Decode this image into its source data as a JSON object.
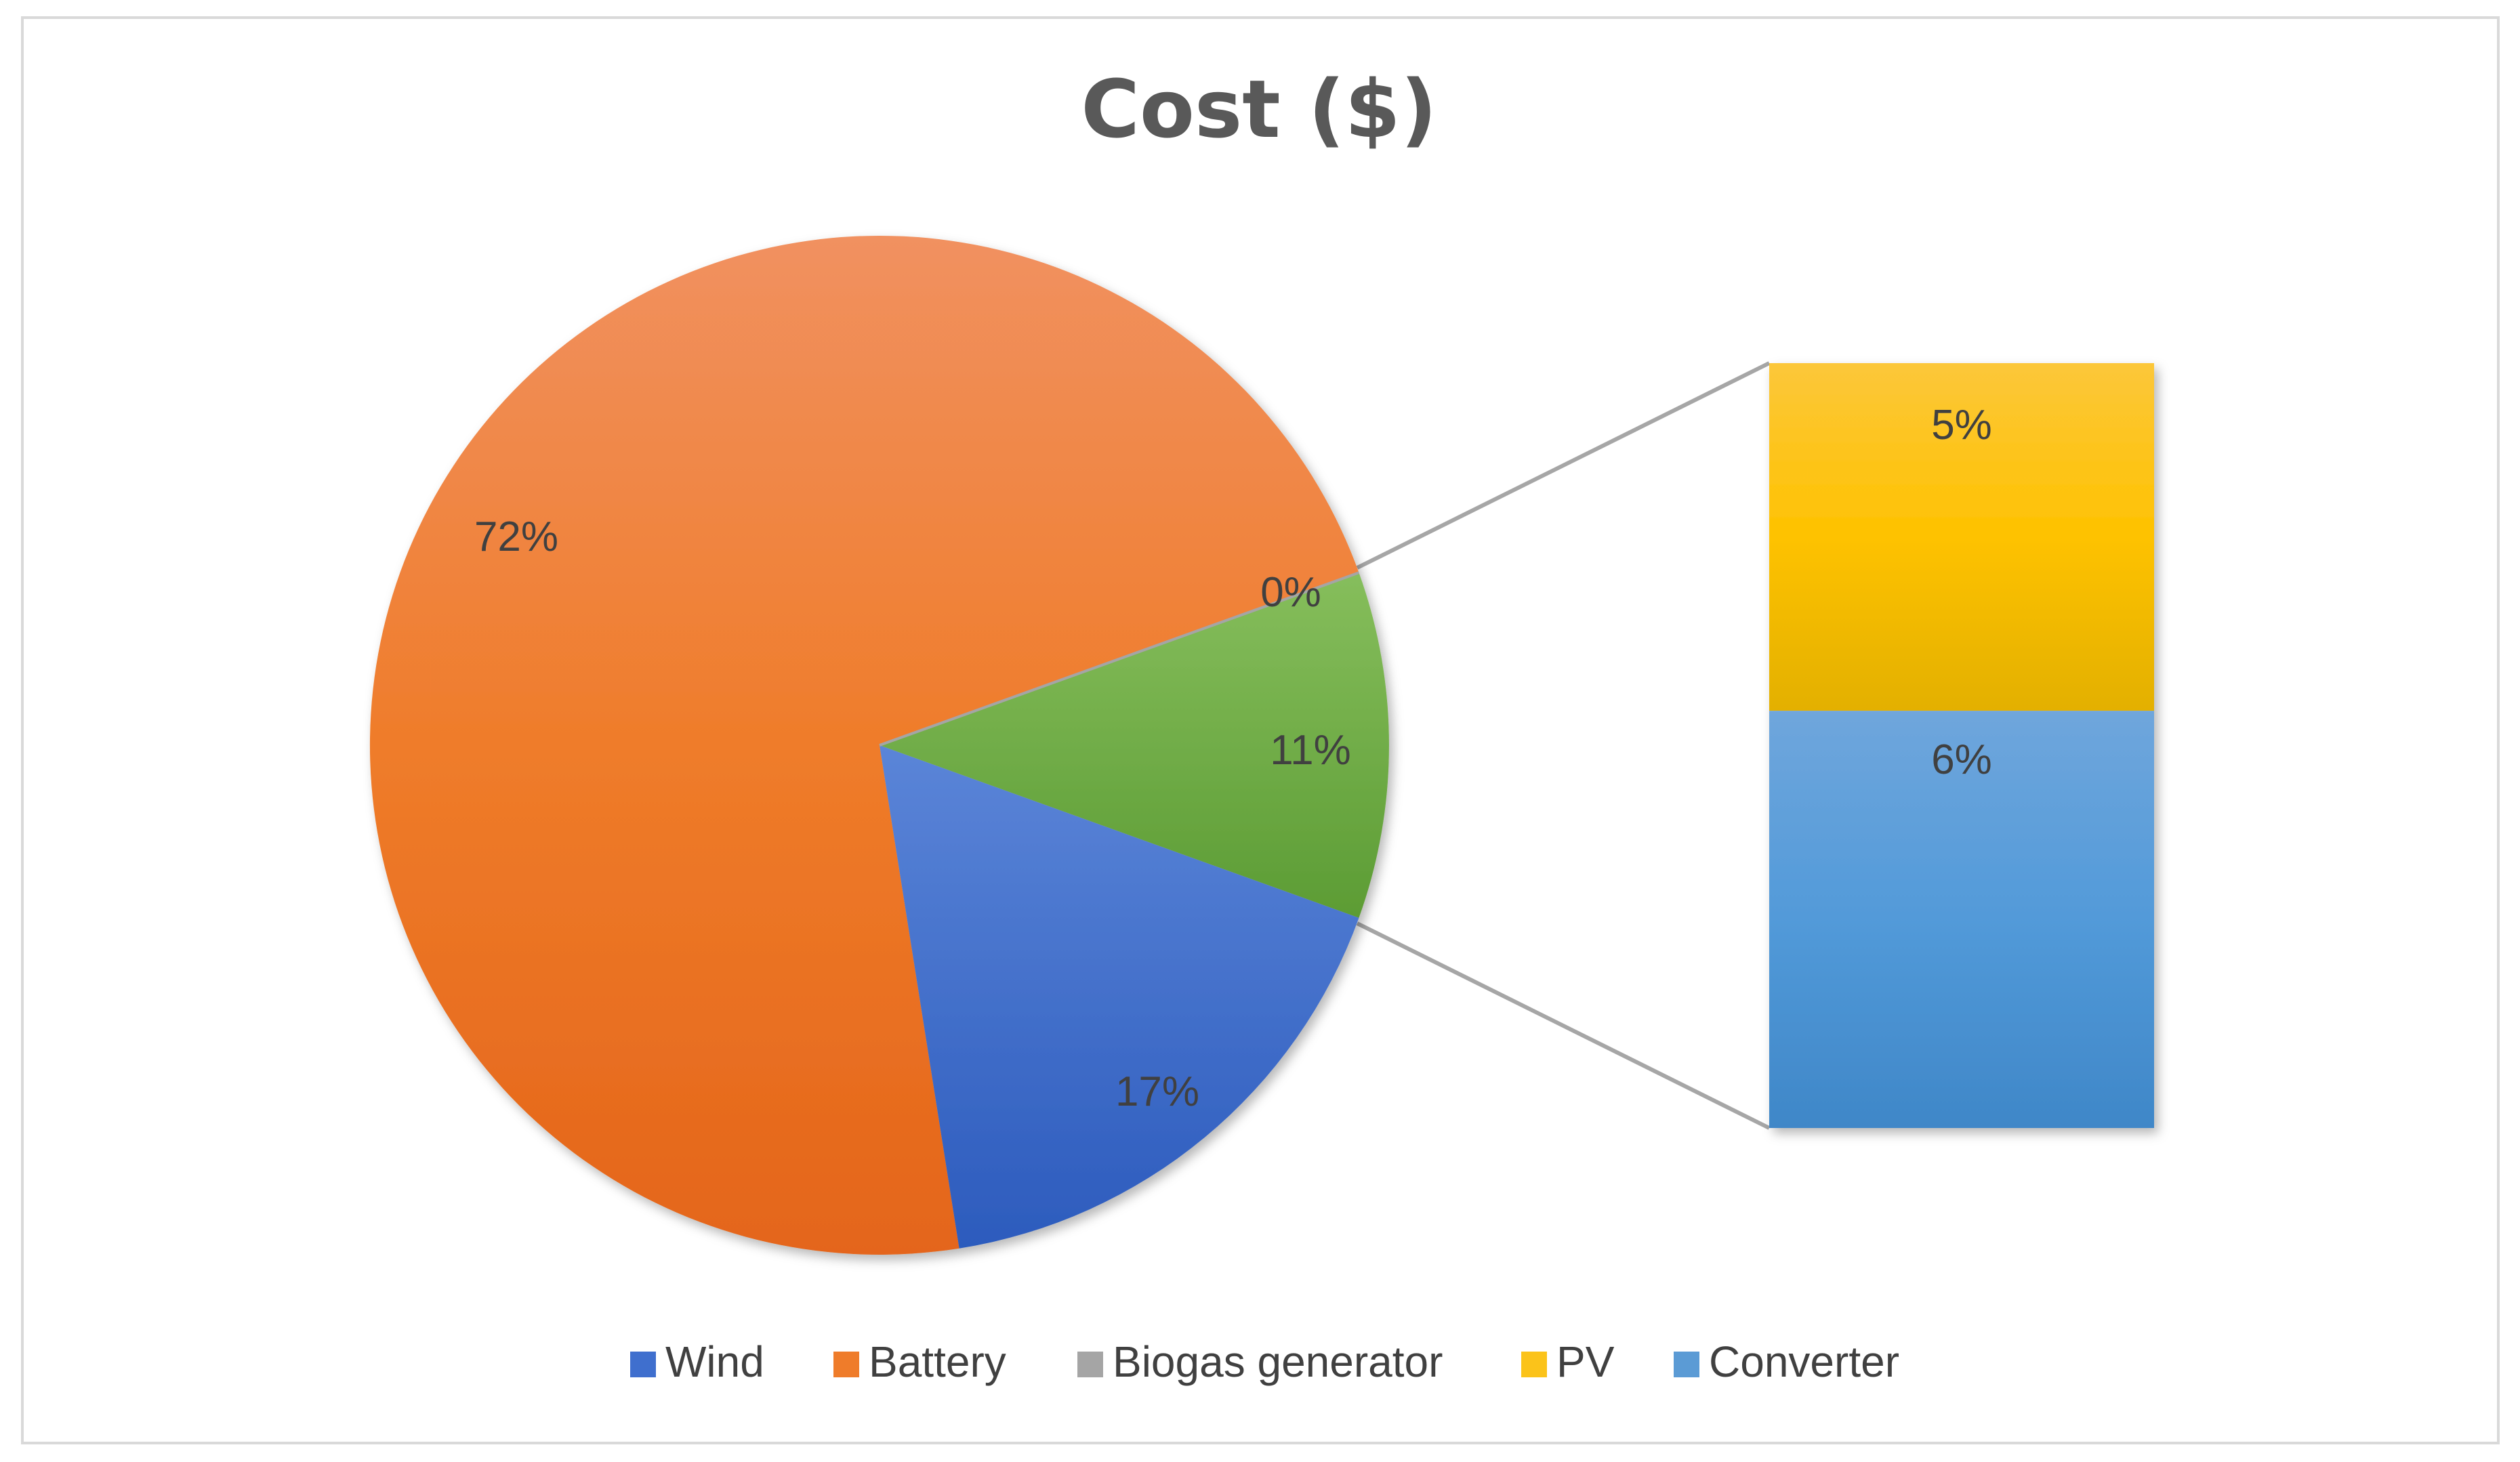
{
  "chart_data": {
    "type": "pie",
    "subtype": "bar-of-pie",
    "title": "Cost ($)",
    "legend_position": "bottom",
    "slices": [
      {
        "name": "Wind",
        "value": 17,
        "label": "17%",
        "color": "#3f6fce"
      },
      {
        "name": "Battery",
        "value": 72,
        "label": "72%",
        "color": "#ef7c2a"
      },
      {
        "name": "Biogas generator",
        "value": 0,
        "label": "0%",
        "color": "#a5a5a5"
      }
    ],
    "other_slice": {
      "value": 11,
      "label": "11%",
      "color": "#6fb042"
    },
    "bar_segments": [
      {
        "name": "PV",
        "value": 5,
        "label": "5%",
        "color": "#fbc31a"
      },
      {
        "name": "Converter",
        "value": 6,
        "label": "6%",
        "color": "#5b9bd5"
      }
    ],
    "legend": [
      {
        "name": "Wind",
        "color": "#3f6fce"
      },
      {
        "name": "Battery",
        "color": "#ef7c2a"
      },
      {
        "name": "Biogas generator",
        "color": "#a5a5a5"
      },
      {
        "name": "PV",
        "color": "#fbc31a"
      },
      {
        "name": "Converter",
        "color": "#5b9bd5"
      }
    ]
  }
}
